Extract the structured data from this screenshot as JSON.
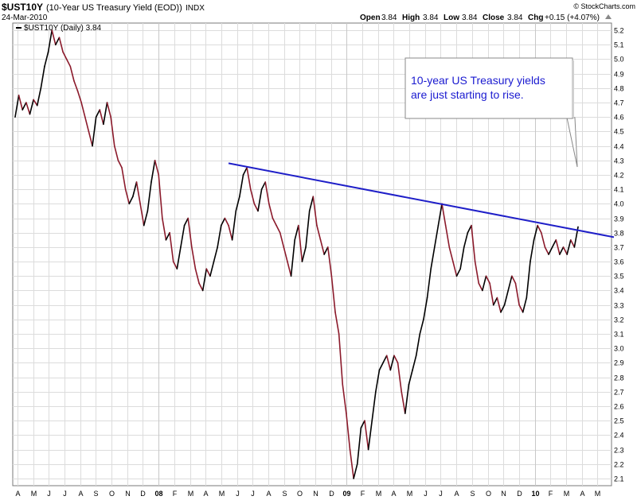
{
  "header": {
    "symbol": "$UST10Y",
    "description": "(10-Year US Treasury Yield (EOD))",
    "exchange": "INDX",
    "date": "24-Mar-2010",
    "watermark": "© StockCharts.com",
    "open_label": "Open",
    "open": "3.84",
    "high_label": "High",
    "high": "3.84",
    "low_label": "Low",
    "low": "3.84",
    "close_label": "Close",
    "close": "3.84",
    "chg_label": "Chg",
    "chg": "+0.15 (+4.07%)"
  },
  "legend": {
    "label": "$UST10Y (Daily) 3.84"
  },
  "callout": {
    "line1": "10-year US Treasury yields",
    "line2": "are just starting to rise."
  },
  "colors": {
    "series": "#8b1a2b",
    "series_up": "#000000",
    "trendline": "#1f1fc8",
    "callout_text": "#1a1ad0"
  },
  "chart_data": {
    "type": "line",
    "ylim": [
      2.05,
      5.25
    ],
    "y_ticks": [
      2.1,
      2.2,
      2.3,
      2.4,
      2.5,
      2.6,
      2.7,
      2.8,
      2.9,
      3.0,
      3.1,
      3.2,
      3.3,
      3.4,
      3.5,
      3.6,
      3.7,
      3.8,
      3.9,
      4.0,
      4.1,
      4.2,
      4.3,
      4.4,
      4.5,
      4.6,
      4.7,
      4.8,
      4.9,
      5.0,
      5.1,
      5.2
    ],
    "x_labels": [
      "A",
      "M",
      "J",
      "J",
      "A",
      "S",
      "O",
      "N",
      "D",
      "08",
      "F",
      "M",
      "A",
      "M",
      "J",
      "J",
      "A",
      "S",
      "O",
      "N",
      "D",
      "09",
      "F",
      "M",
      "A",
      "M",
      "J",
      "J",
      "A",
      "S",
      "O",
      "N",
      "D",
      "10",
      "F",
      "M",
      "A",
      "M"
    ],
    "series": [
      {
        "values": [
          [
            0,
            4.6
          ],
          [
            1,
            4.75
          ],
          [
            2,
            4.65
          ],
          [
            3,
            4.7
          ],
          [
            4,
            4.62
          ],
          [
            5,
            4.72
          ],
          [
            6,
            4.68
          ],
          [
            7,
            4.8
          ],
          [
            8,
            4.95
          ],
          [
            9,
            5.05
          ],
          [
            10,
            5.2
          ],
          [
            11,
            5.1
          ],
          [
            12,
            5.15
          ],
          [
            13,
            5.05
          ],
          [
            14,
            5.0
          ],
          [
            15,
            4.95
          ],
          [
            16,
            4.85
          ],
          [
            17,
            4.78
          ],
          [
            18,
            4.7
          ],
          [
            19,
            4.6
          ],
          [
            20,
            4.5
          ],
          [
            21,
            4.4
          ],
          [
            22,
            4.6
          ],
          [
            23,
            4.65
          ],
          [
            24,
            4.55
          ],
          [
            25,
            4.7
          ],
          [
            26,
            4.6
          ],
          [
            27,
            4.4
          ],
          [
            28,
            4.3
          ],
          [
            29,
            4.25
          ],
          [
            30,
            4.1
          ],
          [
            31,
            4.0
          ],
          [
            32,
            4.05
          ],
          [
            33,
            4.15
          ],
          [
            34,
            4.0
          ],
          [
            35,
            3.85
          ],
          [
            36,
            3.95
          ],
          [
            37,
            4.15
          ],
          [
            38,
            4.3
          ],
          [
            39,
            4.2
          ],
          [
            40,
            3.9
          ],
          [
            41,
            3.75
          ],
          [
            42,
            3.8
          ],
          [
            43,
            3.6
          ],
          [
            44,
            3.55
          ],
          [
            45,
            3.7
          ],
          [
            46,
            3.85
          ],
          [
            47,
            3.9
          ],
          [
            48,
            3.7
          ],
          [
            49,
            3.55
          ],
          [
            50,
            3.45
          ],
          [
            51,
            3.4
          ],
          [
            52,
            3.55
          ],
          [
            53,
            3.5
          ],
          [
            54,
            3.6
          ],
          [
            55,
            3.7
          ],
          [
            56,
            3.85
          ],
          [
            57,
            3.9
          ],
          [
            58,
            3.85
          ],
          [
            59,
            3.75
          ],
          [
            60,
            3.95
          ],
          [
            61,
            4.05
          ],
          [
            62,
            4.2
          ],
          [
            63,
            4.25
          ],
          [
            64,
            4.1
          ],
          [
            65,
            4.0
          ],
          [
            66,
            3.95
          ],
          [
            67,
            4.1
          ],
          [
            68,
            4.15
          ],
          [
            69,
            4.0
          ],
          [
            70,
            3.9
          ],
          [
            71,
            3.85
          ],
          [
            72,
            3.8
          ],
          [
            73,
            3.7
          ],
          [
            74,
            3.6
          ],
          [
            75,
            3.5
          ],
          [
            76,
            3.75
          ],
          [
            77,
            3.85
          ],
          [
            78,
            3.6
          ],
          [
            79,
            3.7
          ],
          [
            80,
            3.95
          ],
          [
            81,
            4.05
          ],
          [
            82,
            3.85
          ],
          [
            83,
            3.75
          ],
          [
            84,
            3.65
          ],
          [
            85,
            3.7
          ],
          [
            86,
            3.5
          ],
          [
            87,
            3.25
          ],
          [
            88,
            3.1
          ],
          [
            89,
            2.75
          ],
          [
            90,
            2.55
          ],
          [
            91,
            2.3
          ],
          [
            92,
            2.1
          ],
          [
            93,
            2.2
          ],
          [
            94,
            2.45
          ],
          [
            95,
            2.5
          ],
          [
            96,
            2.3
          ],
          [
            97,
            2.5
          ],
          [
            98,
            2.7
          ],
          [
            99,
            2.85
          ],
          [
            100,
            2.9
          ],
          [
            101,
            2.95
          ],
          [
            102,
            2.85
          ],
          [
            103,
            2.95
          ],
          [
            104,
            2.9
          ],
          [
            105,
            2.7
          ],
          [
            106,
            2.55
          ],
          [
            107,
            2.75
          ],
          [
            108,
            2.85
          ],
          [
            109,
            2.95
          ],
          [
            110,
            3.1
          ],
          [
            111,
            3.2
          ],
          [
            112,
            3.35
          ],
          [
            113,
            3.55
          ],
          [
            114,
            3.7
          ],
          [
            115,
            3.85
          ],
          [
            116,
            4.0
          ],
          [
            117,
            3.85
          ],
          [
            118,
            3.7
          ],
          [
            119,
            3.6
          ],
          [
            120,
            3.5
          ],
          [
            121,
            3.55
          ],
          [
            122,
            3.7
          ],
          [
            123,
            3.8
          ],
          [
            124,
            3.85
          ],
          [
            125,
            3.6
          ],
          [
            126,
            3.45
          ],
          [
            127,
            3.4
          ],
          [
            128,
            3.5
          ],
          [
            129,
            3.45
          ],
          [
            130,
            3.3
          ],
          [
            131,
            3.35
          ],
          [
            132,
            3.25
          ],
          [
            133,
            3.3
          ],
          [
            134,
            3.4
          ],
          [
            135,
            3.5
          ],
          [
            136,
            3.45
          ],
          [
            137,
            3.3
          ],
          [
            138,
            3.25
          ],
          [
            139,
            3.35
          ],
          [
            140,
            3.6
          ],
          [
            141,
            3.75
          ],
          [
            142,
            3.85
          ],
          [
            143,
            3.8
          ],
          [
            144,
            3.7
          ],
          [
            145,
            3.65
          ],
          [
            146,
            3.7
          ],
          [
            147,
            3.75
          ],
          [
            148,
            3.65
          ],
          [
            149,
            3.7
          ],
          [
            150,
            3.65
          ],
          [
            151,
            3.75
          ],
          [
            152,
            3.7
          ],
          [
            153,
            3.84
          ]
        ]
      }
    ],
    "x_range": [
      0,
      153
    ],
    "trendline": {
      "from": [
        58,
        4.28
      ],
      "to": [
        153,
        3.78
      ]
    }
  }
}
